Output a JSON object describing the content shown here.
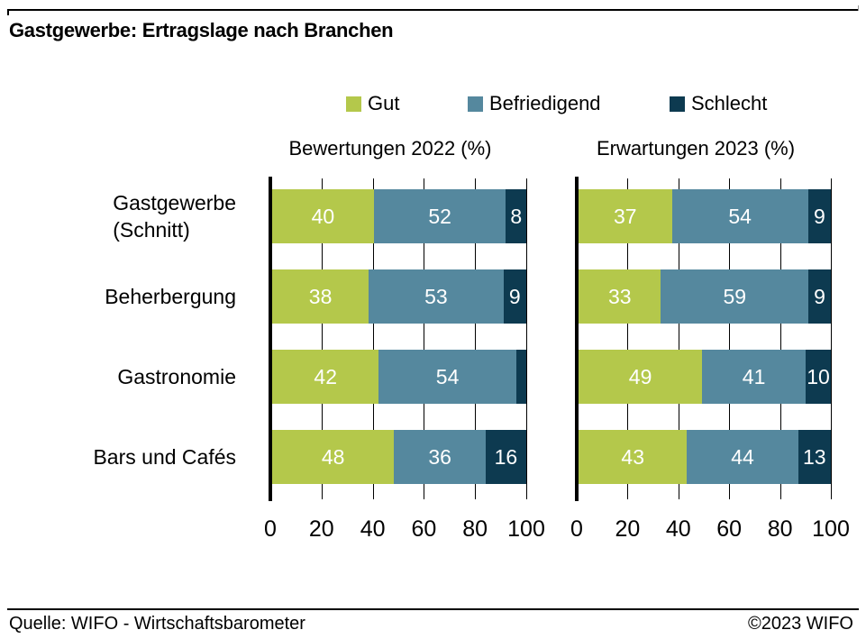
{
  "title": "Gastgewerbe: Ertragslage nach Branchen",
  "legend": {
    "items": [
      {
        "label": "Gut",
        "color": "#b4c84b"
      },
      {
        "label": "Befriedigend",
        "color": "#55889e"
      },
      {
        "label": "Schlecht",
        "color": "#0d3a50"
      }
    ]
  },
  "chart_data": [
    {
      "type": "bar",
      "orientation": "horizontal",
      "stacked": true,
      "title": "Bewertungen 2022 (%)",
      "categories": [
        "Gastgewerbe\n(Schnitt)",
        "Beherbergung",
        "Gastronomie",
        "Bars und Cafés"
      ],
      "xticks": [
        0,
        20,
        40,
        60,
        80,
        100
      ],
      "xlim": [
        0,
        100
      ],
      "grid": true,
      "series": [
        {
          "name": "Gut",
          "values": [
            40,
            38,
            42,
            48
          ],
          "labels": [
            "40",
            "38",
            "42",
            "48"
          ]
        },
        {
          "name": "Befriedigend",
          "values": [
            52,
            53,
            54,
            36
          ],
          "labels": [
            "52",
            "53",
            "54",
            "36"
          ]
        },
        {
          "name": "Schlecht",
          "values": [
            8,
            9,
            4,
            16
          ],
          "labels": [
            "8",
            "9",
            "",
            "16"
          ]
        }
      ]
    },
    {
      "type": "bar",
      "orientation": "horizontal",
      "stacked": true,
      "title": "Erwartungen 2023 (%)",
      "categories": [
        "Gastgewerbe\n(Schnitt)",
        "Beherbergung",
        "Gastronomie",
        "Bars und Cafés"
      ],
      "xticks": [
        0,
        20,
        40,
        60,
        80,
        100
      ],
      "xlim": [
        0,
        100
      ],
      "grid": true,
      "series": [
        {
          "name": "Gut",
          "values": [
            37,
            33,
            49,
            43
          ],
          "labels": [
            "37",
            "33",
            "49",
            "43"
          ]
        },
        {
          "name": "Befriedigend",
          "values": [
            54,
            59,
            41,
            44
          ],
          "labels": [
            "54",
            "59",
            "41",
            "44"
          ]
        },
        {
          "name": "Schlecht",
          "values": [
            9,
            9,
            10,
            13
          ],
          "labels": [
            "9",
            "9",
            "10",
            "13"
          ]
        }
      ]
    }
  ],
  "footer": {
    "source": "Quelle: WIFO - Wirtschaftsbarometer",
    "copyright": "©2023 WIFO"
  }
}
